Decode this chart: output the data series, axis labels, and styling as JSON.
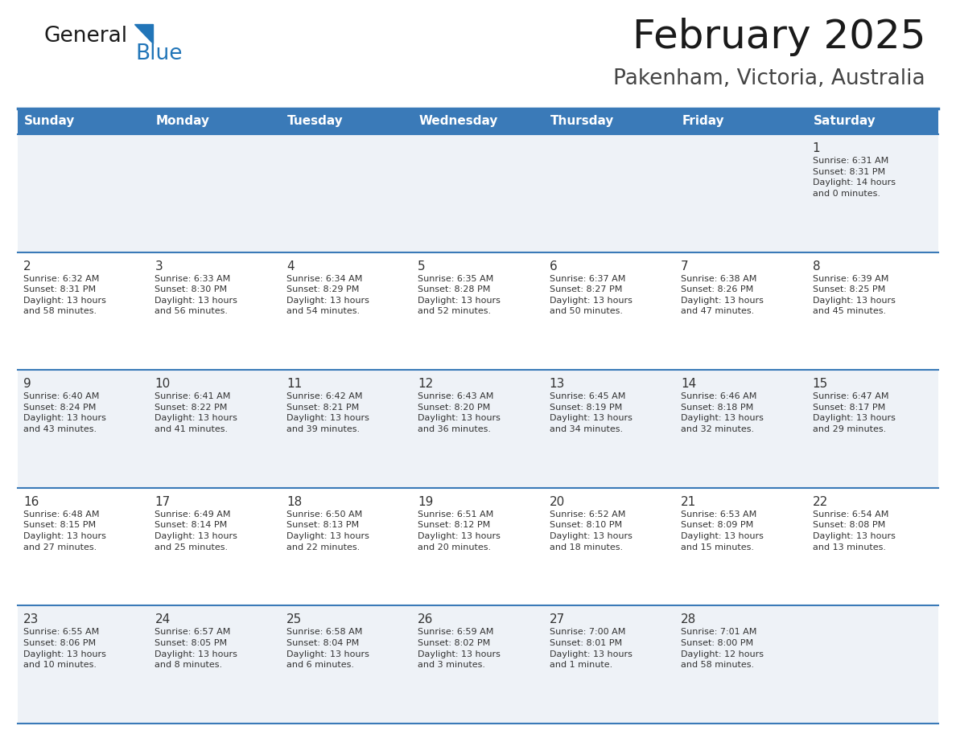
{
  "title": "February 2025",
  "subtitle": "Pakenham, Victoria, Australia",
  "header_bg_color": "#3a7ab8",
  "header_text_color": "#ffffff",
  "weekdays": [
    "Sunday",
    "Monday",
    "Tuesday",
    "Wednesday",
    "Thursday",
    "Friday",
    "Saturday"
  ],
  "row_bg_light": "#eef2f7",
  "row_bg_white": "#ffffff",
  "cell_border_color": "#3a7ab8",
  "text_color": "#333333",
  "logo_general_color": "#1a1a1a",
  "logo_blue_color": "#2175b8",
  "title_color": "#1a1a1a",
  "subtitle_color": "#444444",
  "calendar_data": [
    [
      null,
      null,
      null,
      null,
      null,
      null,
      {
        "day": "1",
        "sunrise": "6:31 AM",
        "sunset": "8:31 PM",
        "daylight": "14 hours\nand 0 minutes."
      }
    ],
    [
      {
        "day": "2",
        "sunrise": "6:32 AM",
        "sunset": "8:31 PM",
        "daylight": "13 hours\nand 58 minutes."
      },
      {
        "day": "3",
        "sunrise": "6:33 AM",
        "sunset": "8:30 PM",
        "daylight": "13 hours\nand 56 minutes."
      },
      {
        "day": "4",
        "sunrise": "6:34 AM",
        "sunset": "8:29 PM",
        "daylight": "13 hours\nand 54 minutes."
      },
      {
        "day": "5",
        "sunrise": "6:35 AM",
        "sunset": "8:28 PM",
        "daylight": "13 hours\nand 52 minutes."
      },
      {
        "day": "6",
        "sunrise": "6:37 AM",
        "sunset": "8:27 PM",
        "daylight": "13 hours\nand 50 minutes."
      },
      {
        "day": "7",
        "sunrise": "6:38 AM",
        "sunset": "8:26 PM",
        "daylight": "13 hours\nand 47 minutes."
      },
      {
        "day": "8",
        "sunrise": "6:39 AM",
        "sunset": "8:25 PM",
        "daylight": "13 hours\nand 45 minutes."
      }
    ],
    [
      {
        "day": "9",
        "sunrise": "6:40 AM",
        "sunset": "8:24 PM",
        "daylight": "13 hours\nand 43 minutes."
      },
      {
        "day": "10",
        "sunrise": "6:41 AM",
        "sunset": "8:22 PM",
        "daylight": "13 hours\nand 41 minutes."
      },
      {
        "day": "11",
        "sunrise": "6:42 AM",
        "sunset": "8:21 PM",
        "daylight": "13 hours\nand 39 minutes."
      },
      {
        "day": "12",
        "sunrise": "6:43 AM",
        "sunset": "8:20 PM",
        "daylight": "13 hours\nand 36 minutes."
      },
      {
        "day": "13",
        "sunrise": "6:45 AM",
        "sunset": "8:19 PM",
        "daylight": "13 hours\nand 34 minutes."
      },
      {
        "day": "14",
        "sunrise": "6:46 AM",
        "sunset": "8:18 PM",
        "daylight": "13 hours\nand 32 minutes."
      },
      {
        "day": "15",
        "sunrise": "6:47 AM",
        "sunset": "8:17 PM",
        "daylight": "13 hours\nand 29 minutes."
      }
    ],
    [
      {
        "day": "16",
        "sunrise": "6:48 AM",
        "sunset": "8:15 PM",
        "daylight": "13 hours\nand 27 minutes."
      },
      {
        "day": "17",
        "sunrise": "6:49 AM",
        "sunset": "8:14 PM",
        "daylight": "13 hours\nand 25 minutes."
      },
      {
        "day": "18",
        "sunrise": "6:50 AM",
        "sunset": "8:13 PM",
        "daylight": "13 hours\nand 22 minutes."
      },
      {
        "day": "19",
        "sunrise": "6:51 AM",
        "sunset": "8:12 PM",
        "daylight": "13 hours\nand 20 minutes."
      },
      {
        "day": "20",
        "sunrise": "6:52 AM",
        "sunset": "8:10 PM",
        "daylight": "13 hours\nand 18 minutes."
      },
      {
        "day": "21",
        "sunrise": "6:53 AM",
        "sunset": "8:09 PM",
        "daylight": "13 hours\nand 15 minutes."
      },
      {
        "day": "22",
        "sunrise": "6:54 AM",
        "sunset": "8:08 PM",
        "daylight": "13 hours\nand 13 minutes."
      }
    ],
    [
      {
        "day": "23",
        "sunrise": "6:55 AM",
        "sunset": "8:06 PM",
        "daylight": "13 hours\nand 10 minutes."
      },
      {
        "day": "24",
        "sunrise": "6:57 AM",
        "sunset": "8:05 PM",
        "daylight": "13 hours\nand 8 minutes."
      },
      {
        "day": "25",
        "sunrise": "6:58 AM",
        "sunset": "8:04 PM",
        "daylight": "13 hours\nand 6 minutes."
      },
      {
        "day": "26",
        "sunrise": "6:59 AM",
        "sunset": "8:02 PM",
        "daylight": "13 hours\nand 3 minutes."
      },
      {
        "day": "27",
        "sunrise": "7:00 AM",
        "sunset": "8:01 PM",
        "daylight": "13 hours\nand 1 minute."
      },
      {
        "day": "28",
        "sunrise": "7:01 AM",
        "sunset": "8:00 PM",
        "daylight": "12 hours\nand 58 minutes."
      },
      null
    ]
  ]
}
